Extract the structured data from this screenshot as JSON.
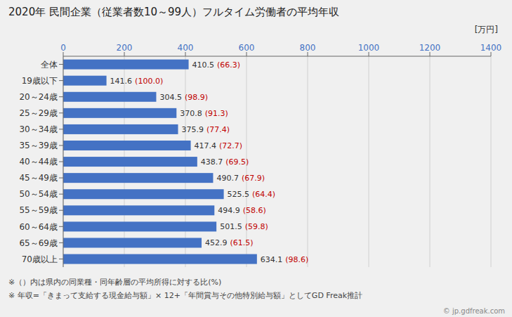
{
  "chart_data": {
    "type": "bar",
    "orientation": "horizontal",
    "title": "2020年 民間企業（従業者数10～99人）フルタイム労働者の平均年収",
    "xlabel": "[万円]",
    "categories": [
      "全体",
      "19歳以下",
      "20～24歳",
      "25～29歳",
      "30～34歳",
      "35～39歳",
      "40～44歳",
      "45～49歳",
      "50～54歳",
      "55～59歳",
      "60～64歳",
      "65～69歳",
      "70歳以上"
    ],
    "values": [
      410.5,
      141.6,
      304.5,
      370.8,
      375.9,
      417.4,
      438.7,
      490.7,
      525.5,
      494.9,
      501.5,
      452.9,
      634.1
    ],
    "color": "#4472c4",
    "data_labels": true,
    "annotations": [
      {
        "category": "全体",
        "text": "(66.3)",
        "color": "#c00000"
      },
      {
        "category": "19歳以下",
        "text": "(100.0)",
        "color": "#c00000"
      },
      {
        "category": "20～24歳",
        "text": "(98.9)",
        "color": "#c00000"
      },
      {
        "category": "25～29歳",
        "text": "(91.3)",
        "color": "#c00000"
      },
      {
        "category": "30～34歳",
        "text": "(77.4)",
        "color": "#c00000"
      },
      {
        "category": "35～39歳",
        "text": "(72.7)",
        "color": "#c00000"
      },
      {
        "category": "40～44歳",
        "text": "(69.5)",
        "color": "#c00000"
      },
      {
        "category": "45～49歳",
        "text": "(67.9)",
        "color": "#c00000"
      },
      {
        "category": "50～54歳",
        "text": "(64.4)",
        "color": "#c00000"
      },
      {
        "category": "55～59歳",
        "text": "(58.6)",
        "color": "#c00000"
      },
      {
        "category": "60～64歳",
        "text": "(59.8)",
        "color": "#c00000"
      },
      {
        "category": "65～69歳",
        "text": "(61.5)",
        "color": "#c00000"
      },
      {
        "category": "70歳以上",
        "text": "(98.6)",
        "color": "#c00000"
      }
    ],
    "xlim": [
      0,
      1400
    ],
    "xticks": [
      0,
      200,
      400,
      600,
      800,
      1000,
      1200,
      1400
    ],
    "grid": true,
    "footnotes": [
      "※（）内は県内の同業種・同年齢層の平均所得に対する比(%)",
      "※ 年収=「きまって支給する現金給与額」× 12+「年間賞与その他特別給与額」としてGD Freak推計"
    ],
    "watermark": "© jp.gdfreak.com"
  }
}
